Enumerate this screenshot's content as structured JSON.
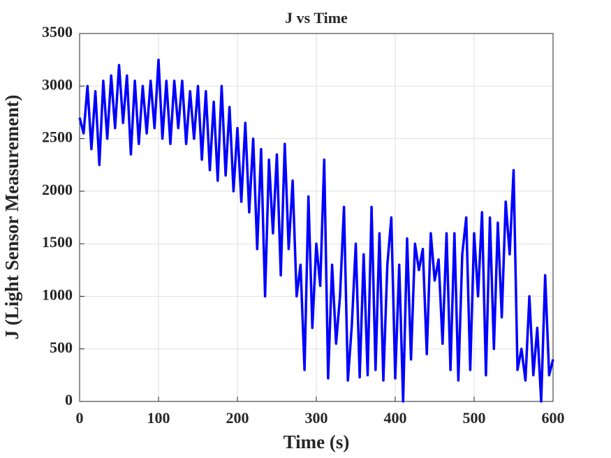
{
  "chart_data": {
    "type": "line",
    "title": "J vs Time",
    "xlabel": "Time (s)",
    "ylabel": "J (Light Sensor Measurement)",
    "x": [
      0,
      5,
      10,
      15,
      20,
      25,
      30,
      35,
      40,
      45,
      50,
      55,
      60,
      65,
      70,
      75,
      80,
      85,
      90,
      95,
      100,
      105,
      110,
      115,
      120,
      125,
      130,
      135,
      140,
      145,
      150,
      155,
      160,
      165,
      170,
      175,
      180,
      185,
      190,
      195,
      200,
      205,
      210,
      215,
      220,
      225,
      230,
      235,
      240,
      245,
      250,
      255,
      260,
      265,
      270,
      275,
      280,
      285,
      290,
      295,
      300,
      305,
      310,
      315,
      320,
      325,
      330,
      335,
      340,
      345,
      350,
      355,
      360,
      365,
      370,
      375,
      380,
      385,
      390,
      395,
      400,
      405,
      410,
      415,
      420,
      425,
      430,
      435,
      440,
      445,
      450,
      455,
      460,
      465,
      470,
      475,
      480,
      485,
      490,
      495,
      500,
      505,
      510,
      515,
      520,
      525,
      530,
      535,
      540,
      545,
      550,
      555,
      560,
      565,
      570,
      575,
      580,
      585,
      590,
      595,
      600
    ],
    "series": [
      {
        "name": "J",
        "color": "#0000ff",
        "values": [
          2700,
          2550,
          3000,
          2400,
          2950,
          2250,
          3050,
          2500,
          3100,
          2600,
          3200,
          2650,
          3100,
          2350,
          3050,
          2450,
          3000,
          2550,
          3050,
          2600,
          3250,
          2500,
          3050,
          2450,
          3050,
          2600,
          3050,
          2450,
          2950,
          2500,
          3000,
          2300,
          2950,
          2200,
          2850,
          2100,
          3000,
          2150,
          2800,
          2000,
          2600,
          1900,
          2650,
          1800,
          2500,
          1450,
          2400,
          1000,
          2300,
          1600,
          2350,
          1200,
          2450,
          1450,
          2100,
          1000,
          1300,
          300,
          1950,
          700,
          1500,
          1100,
          2300,
          220,
          1300,
          550,
          1000,
          1850,
          200,
          720,
          1500,
          230,
          1400,
          250,
          1850,
          300,
          1600,
          200,
          1300,
          1750,
          220,
          1300,
          0,
          1550,
          400,
          1500,
          1250,
          1450,
          450,
          1600,
          1150,
          1350,
          550,
          1600,
          300,
          1600,
          200,
          1400,
          1750,
          300,
          1600,
          1000,
          1800,
          250,
          1750,
          500,
          1700,
          800,
          1900,
          1400,
          2200,
          300,
          500,
          200,
          1000,
          250,
          700,
          0,
          1200,
          250,
          400
        ]
      }
    ],
    "xlim": [
      0,
      600
    ],
    "ylim": [
      0,
      3500
    ],
    "xticks": [
      0,
      100,
      200,
      300,
      400,
      500,
      600
    ],
    "yticks": [
      0,
      500,
      1000,
      1500,
      2000,
      2500,
      3000,
      3500
    ],
    "grid": true
  }
}
